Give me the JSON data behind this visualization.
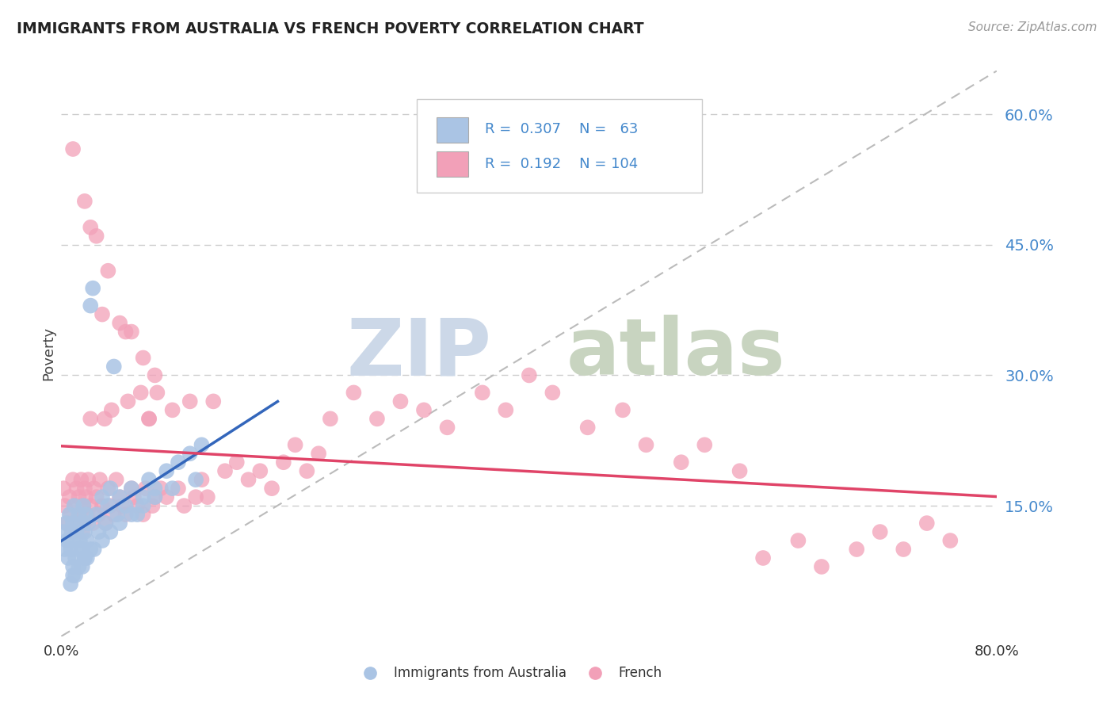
{
  "title": "IMMIGRANTS FROM AUSTRALIA VS FRENCH POVERTY CORRELATION CHART",
  "source": "Source: ZipAtlas.com",
  "ylabel": "Poverty",
  "xlim": [
    0.0,
    0.8
  ],
  "ylim": [
    0.0,
    0.65
  ],
  "yticks": [
    0.15,
    0.3,
    0.45,
    0.6
  ],
  "ytick_labels": [
    "15.0%",
    "30.0%",
    "45.0%",
    "60.0%"
  ],
  "xtick_left": "0.0%",
  "xtick_right": "80.0%",
  "blue_R": 0.307,
  "blue_N": 63,
  "pink_R": 0.192,
  "pink_N": 104,
  "blue_color": "#aac4e4",
  "pink_color": "#f2a0b8",
  "blue_line_color": "#3366bb",
  "pink_line_color": "#e04468",
  "label_color": "#4488cc",
  "grid_color": "#cccccc",
  "background_color": "#ffffff",
  "blue_x": [
    0.002,
    0.003,
    0.004,
    0.005,
    0.006,
    0.007,
    0.008,
    0.009,
    0.01,
    0.01,
    0.01,
    0.011,
    0.012,
    0.013,
    0.014,
    0.015,
    0.016,
    0.017,
    0.018,
    0.019,
    0.02,
    0.02,
    0.021,
    0.022,
    0.023,
    0.025,
    0.027,
    0.03,
    0.032,
    0.035,
    0.038,
    0.04,
    0.042,
    0.045,
    0.048,
    0.05,
    0.055,
    0.06,
    0.065,
    0.07,
    0.075,
    0.08,
    0.09,
    0.1,
    0.11,
    0.12,
    0.01,
    0.015,
    0.02,
    0.025,
    0.008,
    0.012,
    0.018,
    0.022,
    0.028,
    0.035,
    0.042,
    0.05,
    0.06,
    0.07,
    0.08,
    0.095,
    0.115
  ],
  "blue_y": [
    0.12,
    0.1,
    0.13,
    0.11,
    0.09,
    0.14,
    0.1,
    0.12,
    0.08,
    0.13,
    0.11,
    0.15,
    0.09,
    0.12,
    0.1,
    0.14,
    0.11,
    0.13,
    0.1,
    0.15,
    0.12,
    0.09,
    0.14,
    0.11,
    0.13,
    0.38,
    0.4,
    0.14,
    0.12,
    0.16,
    0.13,
    0.15,
    0.17,
    0.31,
    0.14,
    0.16,
    0.15,
    0.17,
    0.14,
    0.16,
    0.18,
    0.17,
    0.19,
    0.2,
    0.21,
    0.22,
    0.07,
    0.08,
    0.09,
    0.1,
    0.06,
    0.07,
    0.08,
    0.09,
    0.1,
    0.11,
    0.12,
    0.13,
    0.14,
    0.15,
    0.16,
    0.17,
    0.18
  ],
  "pink_x": [
    0.002,
    0.003,
    0.005,
    0.007,
    0.008,
    0.01,
    0.01,
    0.012,
    0.013,
    0.015,
    0.015,
    0.016,
    0.017,
    0.018,
    0.019,
    0.02,
    0.02,
    0.021,
    0.022,
    0.023,
    0.025,
    0.025,
    0.027,
    0.028,
    0.03,
    0.032,
    0.033,
    0.035,
    0.037,
    0.038,
    0.04,
    0.042,
    0.043,
    0.045,
    0.047,
    0.05,
    0.052,
    0.055,
    0.057,
    0.06,
    0.062,
    0.065,
    0.068,
    0.07,
    0.072,
    0.075,
    0.078,
    0.08,
    0.082,
    0.085,
    0.09,
    0.095,
    0.1,
    0.105,
    0.11,
    0.115,
    0.12,
    0.125,
    0.13,
    0.14,
    0.15,
    0.16,
    0.17,
    0.18,
    0.19,
    0.2,
    0.21,
    0.22,
    0.23,
    0.25,
    0.27,
    0.29,
    0.31,
    0.33,
    0.36,
    0.38,
    0.4,
    0.42,
    0.45,
    0.48,
    0.5,
    0.53,
    0.55,
    0.58,
    0.6,
    0.63,
    0.65,
    0.68,
    0.7,
    0.72,
    0.74,
    0.76,
    0.01,
    0.02,
    0.03,
    0.04,
    0.05,
    0.06,
    0.07,
    0.08,
    0.025,
    0.035,
    0.055,
    0.075
  ],
  "pink_y": [
    0.17,
    0.15,
    0.13,
    0.16,
    0.14,
    0.18,
    0.12,
    0.15,
    0.17,
    0.13,
    0.16,
    0.14,
    0.18,
    0.12,
    0.15,
    0.17,
    0.13,
    0.16,
    0.14,
    0.18,
    0.15,
    0.25,
    0.13,
    0.17,
    0.16,
    0.14,
    0.18,
    0.15,
    0.25,
    0.13,
    0.17,
    0.15,
    0.26,
    0.14,
    0.18,
    0.16,
    0.15,
    0.14,
    0.27,
    0.17,
    0.16,
    0.15,
    0.28,
    0.14,
    0.17,
    0.25,
    0.15,
    0.16,
    0.28,
    0.17,
    0.16,
    0.26,
    0.17,
    0.15,
    0.27,
    0.16,
    0.18,
    0.16,
    0.27,
    0.19,
    0.2,
    0.18,
    0.19,
    0.17,
    0.2,
    0.22,
    0.19,
    0.21,
    0.25,
    0.28,
    0.25,
    0.27,
    0.26,
    0.24,
    0.28,
    0.26,
    0.3,
    0.28,
    0.24,
    0.26,
    0.22,
    0.2,
    0.22,
    0.19,
    0.09,
    0.11,
    0.08,
    0.1,
    0.12,
    0.1,
    0.13,
    0.11,
    0.56,
    0.5,
    0.46,
    0.42,
    0.36,
    0.35,
    0.32,
    0.3,
    0.47,
    0.37,
    0.35,
    0.25
  ]
}
